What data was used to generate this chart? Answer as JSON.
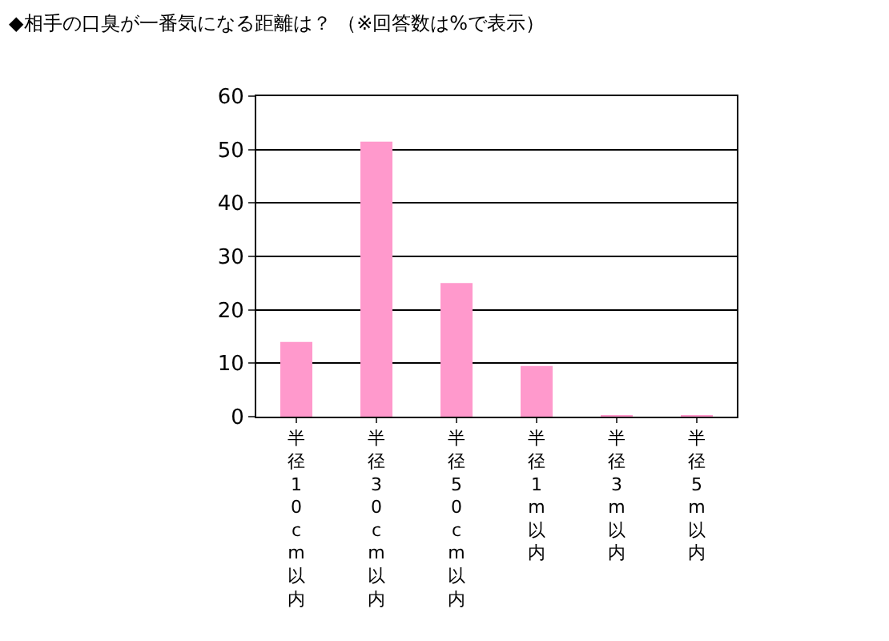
{
  "chart_data": {
    "type": "bar",
    "title": "◆相手の口臭が一番気になる距離は？ （※回答数は%で表示）",
    "categories": [
      "半径10cm以内",
      "半径30cm以内",
      "半径50cm以内",
      "半径1m以内",
      "半径3m以内",
      "半径5m以内"
    ],
    "values": [
      14,
      51.5,
      25,
      9.5,
      0.3,
      0.2
    ],
    "color": "#ff99cc",
    "ylim": [
      0,
      60
    ],
    "yticks": [
      0,
      10,
      20,
      30,
      40,
      50,
      60
    ],
    "grid": "y"
  }
}
